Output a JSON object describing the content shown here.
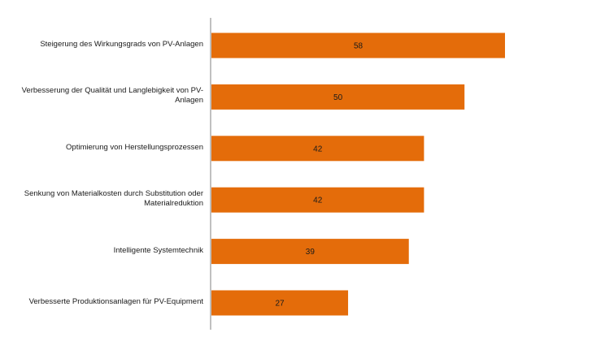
{
  "chart_data": {
    "type": "bar",
    "orientation": "horizontal",
    "title": "",
    "xlabel": "",
    "ylabel": "",
    "categories": [
      "Steigerung des Wirkungsgrads von PV-Anlagen",
      "Verbesserung der Qualität und Langlebigkeit von PV-Anlagen",
      "Optimierung von Herstellungsprozessen",
      "Senkung von Materialkosten durch Substitution oder Materialreduktion",
      "Intelligente Systemtechnik",
      "Verbesserte Produktionsanlagen für PV-Equipment"
    ],
    "values": [
      58,
      50,
      42,
      42,
      39,
      27
    ],
    "xlim": [
      0,
      64
    ],
    "grid": false,
    "legend": "none",
    "bar_color": "#E46C0A",
    "axis_color": "#808080"
  }
}
